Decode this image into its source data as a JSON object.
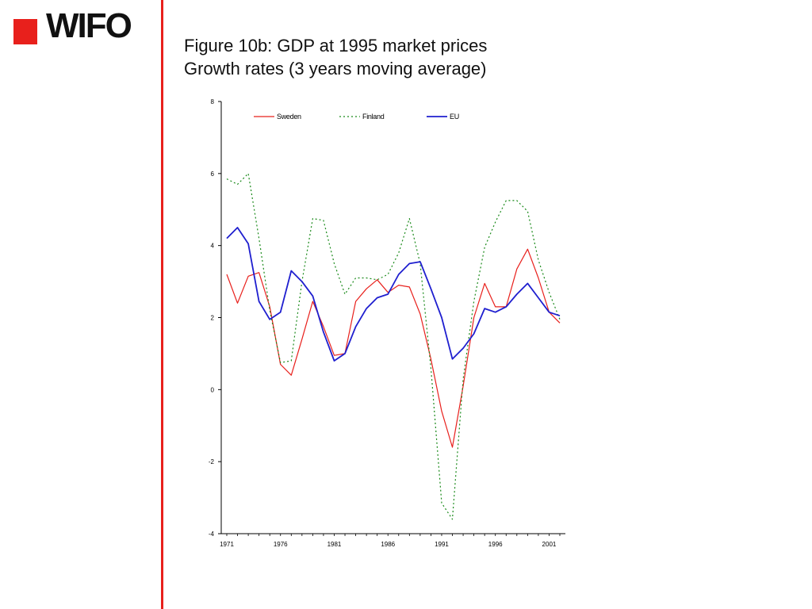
{
  "logo": {
    "text": "WIFO",
    "square_color": "#e8201c"
  },
  "accent_color": "#e8201c",
  "title": {
    "line1": "Figure 10b: GDP at 1995 market prices",
    "line2": "Growth rates (3 years moving average)"
  },
  "chart_data": {
    "type": "line",
    "x": [
      1971,
      1972,
      1973,
      1974,
      1975,
      1976,
      1977,
      1978,
      1979,
      1980,
      1981,
      1982,
      1983,
      1984,
      1985,
      1986,
      1987,
      1988,
      1989,
      1990,
      1991,
      1992,
      1993,
      1994,
      1995,
      1996,
      1997,
      1998,
      1999,
      2000,
      2001,
      2002
    ],
    "x_tick_labels": [
      "1971",
      "1976",
      "1981",
      "1986",
      "1991",
      "1996",
      "2001"
    ],
    "x_tick_values": [
      1971,
      1976,
      1981,
      1986,
      1991,
      1996,
      2001
    ],
    "ylim": [
      -4,
      8
    ],
    "y_ticks": [
      -4,
      -2,
      0,
      2,
      4,
      6,
      8
    ],
    "y_tick_labels": [
      "-4",
      "-2",
      "0",
      "2",
      "4",
      "6",
      "8"
    ],
    "legend_position": "top",
    "series": [
      {
        "name": "Sweden",
        "color": "#e8201c",
        "style": "solid",
        "values": [
          3.2,
          2.4,
          3.15,
          3.25,
          2.3,
          0.7,
          0.4,
          1.4,
          2.45,
          1.75,
          0.95,
          1.0,
          2.45,
          2.8,
          3.05,
          2.7,
          2.9,
          2.85,
          2.1,
          0.85,
          -0.6,
          -1.6,
          0.1,
          2.0,
          2.95,
          2.3,
          2.3,
          3.35,
          3.9,
          3.1,
          2.15,
          1.85
        ]
      },
      {
        "name": "Finland",
        "color": "#1a8a1a",
        "style": "dotted",
        "values": [
          5.85,
          5.7,
          6.0,
          4.2,
          2.2,
          0.75,
          0.8,
          3.0,
          4.75,
          4.7,
          3.5,
          2.65,
          3.1,
          3.1,
          3.05,
          3.2,
          3.8,
          4.75,
          3.5,
          0.6,
          -3.15,
          -3.6,
          0.3,
          2.45,
          3.95,
          4.65,
          5.25,
          5.25,
          4.95,
          3.6,
          2.7,
          1.95
        ]
      },
      {
        "name": "EU",
        "color": "#1f1fcf",
        "style": "solid",
        "values": [
          4.2,
          4.5,
          4.05,
          2.45,
          1.95,
          2.15,
          3.3,
          3.0,
          2.6,
          1.6,
          0.8,
          1.0,
          1.75,
          2.25,
          2.55,
          2.65,
          3.2,
          3.5,
          3.55,
          2.8,
          2.0,
          0.85,
          1.15,
          1.55,
          2.25,
          2.15,
          2.3,
          2.65,
          2.95,
          2.55,
          2.15,
          2.05
        ]
      }
    ]
  }
}
